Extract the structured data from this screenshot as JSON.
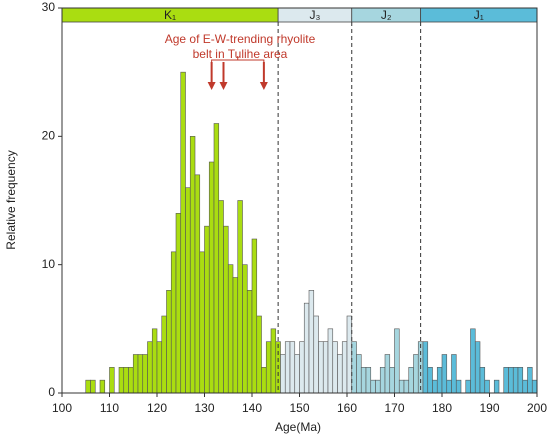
{
  "chart_data": {
    "type": "histogram",
    "xlabel": "Age(Ma)",
    "ylabel": "Relative frequency",
    "xlim": [
      100,
      200
    ],
    "ylim": [
      0,
      30
    ],
    "xticks": [
      100,
      110,
      120,
      130,
      140,
      150,
      160,
      170,
      180,
      190,
      200
    ],
    "yticks": [
      0,
      10,
      20,
      30
    ],
    "bins": [
      100,
      101,
      102,
      103,
      104,
      105,
      106,
      107,
      108,
      109,
      110,
      111,
      112,
      113,
      114,
      115,
      116,
      117,
      118,
      119,
      120,
      121,
      122,
      123,
      124,
      125,
      126,
      127,
      128,
      129,
      130,
      131,
      132,
      133,
      134,
      135,
      136,
      137,
      138,
      139,
      140,
      141,
      142,
      143,
      144,
      145,
      146,
      147,
      148,
      149,
      150,
      151,
      152,
      153,
      154,
      155,
      156,
      157,
      158,
      159,
      160,
      161,
      162,
      163,
      164,
      165,
      166,
      167,
      168,
      169,
      170,
      171,
      172,
      173,
      174,
      175,
      176,
      177,
      178,
      179,
      180,
      181,
      182,
      183,
      184,
      185,
      186,
      187,
      188,
      189,
      190,
      191,
      192,
      193,
      194,
      195,
      196,
      197,
      198,
      199,
      200
    ],
    "counts": [
      0,
      0,
      0,
      0,
      0,
      1,
      1,
      0,
      1,
      0,
      2,
      0,
      2,
      2,
      2,
      3,
      3,
      3,
      4,
      5,
      4,
      6,
      8,
      11,
      14,
      25,
      16,
      20,
      17,
      11,
      13,
      18,
      21,
      15,
      13,
      10,
      9,
      15,
      10,
      8,
      12,
      6,
      2,
      4,
      5,
      4,
      3,
      4,
      4,
      3,
      4,
      7,
      8,
      6,
      4,
      4,
      5,
      4,
      3,
      4,
      6,
      4,
      3,
      2,
      2,
      1,
      1,
      2,
      3,
      2,
      5,
      1,
      1,
      2,
      3,
      4,
      4,
      2,
      1,
      2,
      3,
      1,
      3,
      1,
      0,
      1,
      5,
      4,
      2,
      1,
      0,
      1,
      0,
      2,
      2,
      2,
      2,
      1,
      2,
      1
    ],
    "periods": [
      {
        "label": "K₁",
        "start": 100,
        "end": 145.5,
        "color": "#aadd11"
      },
      {
        "label": "J₃",
        "start": 145.5,
        "end": 161,
        "color": "#dce9ee"
      },
      {
        "label": "J₂",
        "start": 161,
        "end": 175.5,
        "color": "#a6d6df"
      },
      {
        "label": "J₁",
        "start": 175.5,
        "end": 200,
        "color": "#5bbcd9"
      }
    ],
    "annotation": {
      "lines": [
        "Age of E-W-trending rhyolite",
        "belt in Tulihe area"
      ],
      "arrows": [
        131.5,
        134,
        142.5
      ],
      "color": "#c0392b"
    }
  }
}
